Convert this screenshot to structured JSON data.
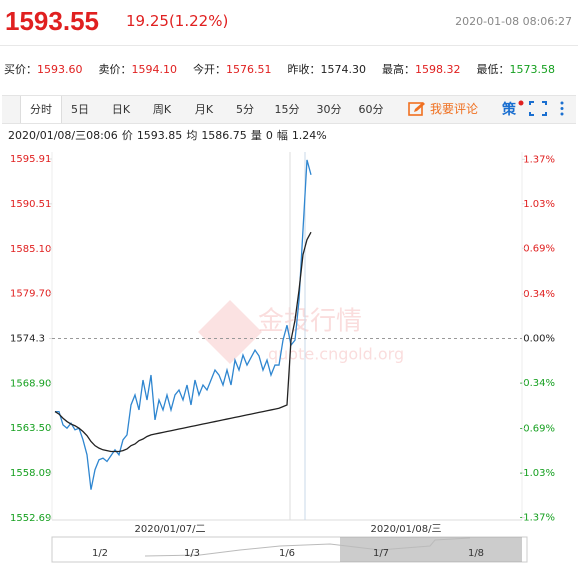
{
  "header": {
    "price": "1593.55",
    "change": "19.25(1.22%)",
    "time": "2020-01-08 08:06:27"
  },
  "quotes": [
    {
      "label": "买价：",
      "value": "1593.60",
      "color": "#e02020"
    },
    {
      "label": "卖价：",
      "value": "1594.10",
      "color": "#e02020"
    },
    {
      "label": "今开：",
      "value": "1576.51",
      "color": "#e02020"
    },
    {
      "label": "昨收：",
      "value": "1574.30",
      "color": "#222222"
    },
    {
      "label": "最高：",
      "value": "1598.32",
      "color": "#e02020"
    },
    {
      "label": "最低：",
      "value": "1573.58",
      "color": "#16a020"
    }
  ],
  "tabs": [
    "分时",
    "5日",
    "日K",
    "周K",
    "月K",
    "5分",
    "15分",
    "30分",
    "60分"
  ],
  "comment_button": "我要评论",
  "strategy_button": "策",
  "info": {
    "time": "2020/01/08/三08:06",
    "items": [
      {
        "label": "价",
        "value": "1593.85"
      },
      {
        "label": "均",
        "value": "1586.75"
      },
      {
        "label": "量",
        "value": "0"
      },
      {
        "label": "幅",
        "value": "1.24%"
      }
    ]
  },
  "watermark": {
    "name": "金投行情",
    "url": "quote.cngold.org"
  },
  "sessions": [
    "2020/01/07/二",
    "2020/01/08/三"
  ],
  "navigator": [
    "1/2",
    "1/3",
    "1/6",
    "1/7",
    "1/8"
  ],
  "chart_data": {
    "type": "line",
    "ylim": [
      1552.45,
      1596.75
    ],
    "yticks": [
      1595.91,
      1590.51,
      {
        "value": 1585.1,
        "label": "1585.10"
      },
      {
        "value": 1579.7,
        "label": "1579.70"
      },
      1574.3,
      {
        "value": 1568.9,
        "label": "1568.90"
      },
      {
        "value": 1563.5,
        "label": "1563.50"
      },
      1558.09,
      1552.69
    ],
    "y2lim": [
      -1.388,
      1.426
    ],
    "y2ticks": [
      {
        "value": 1.37,
        "label": "1.37%"
      },
      {
        "value": 1.03,
        "label": "1.03%"
      },
      {
        "value": 0.69,
        "label": "0.69%"
      },
      {
        "value": 0.34,
        "label": "0.34%"
      },
      {
        "value": 0,
        "label": "0.00%"
      },
      {
        "value": -0.34,
        "label": "-0.34%"
      },
      {
        "value": -0.69,
        "label": "-0.69%"
      },
      {
        "value": -1.03,
        "label": "-1.03%"
      },
      {
        "value": -1.37,
        "label": "-1.37%"
      }
    ],
    "series": [
      {
        "color": "#2f86d0",
        "values": [
          1565.5,
          1565.5,
          1563.9,
          1563.5,
          1564.1,
          1563.3,
          1563.5,
          1562.1,
          1560.3,
          1556.1,
          1558.5,
          1559.7,
          1559.9,
          1559.5,
          1560.2,
          1560.9,
          1560.3,
          1562.1,
          1562.7,
          1566.3,
          1567.5,
          1565.7,
          1569.3,
          1566.9,
          1569.9,
          1564.5,
          1566.9,
          1565.7,
          1567.5,
          1565.7,
          1567.5,
          1568.1,
          1566.9,
          1568.7,
          1566.3,
          1569.3,
          1567.5,
          1568.7,
          1568.1,
          1569.3,
          1570.5,
          1569.9,
          1568.7,
          1570.5,
          1568.7,
          1571.7,
          1570.5,
          1572.3,
          1571.1,
          1572.0,
          1572.9,
          1572.2,
          1570.5,
          1571.7,
          1569.9,
          1571.1,
          1571.1,
          1574.1,
          1575.9,
          1573.5,
          1574.1,
          1578.9,
          1587.4,
          1595.8,
          1594.0
        ]
      },
      {
        "color": "#222222",
        "values": [
          1565.5,
          1565.2,
          1564.7,
          1564.3,
          1564.0,
          1563.8,
          1563.5,
          1563.1,
          1562.6,
          1561.9,
          1561.4,
          1561.1,
          1560.9,
          1560.8,
          1560.7,
          1560.7,
          1560.7,
          1560.8,
          1561.0,
          1561.4,
          1561.6,
          1562.0,
          1562.2,
          1562.5,
          1562.7,
          1562.8,
          1562.9,
          1563.0,
          1563.1,
          1563.2,
          1563.3,
          1563.4,
          1563.5,
          1563.6,
          1563.7,
          1563.8,
          1563.9,
          1564.0,
          1564.1,
          1564.2,
          1564.3,
          1564.4,
          1564.5,
          1564.6,
          1564.7,
          1564.8,
          1564.9,
          1565.0,
          1565.1,
          1565.2,
          1565.3,
          1565.4,
          1565.5,
          1565.6,
          1565.7,
          1565.8,
          1565.9,
          1566.1,
          1566.3,
          1574.1,
          1576.5,
          1580.1,
          1584.4,
          1586.2,
          1587.1
        ]
      }
    ]
  }
}
